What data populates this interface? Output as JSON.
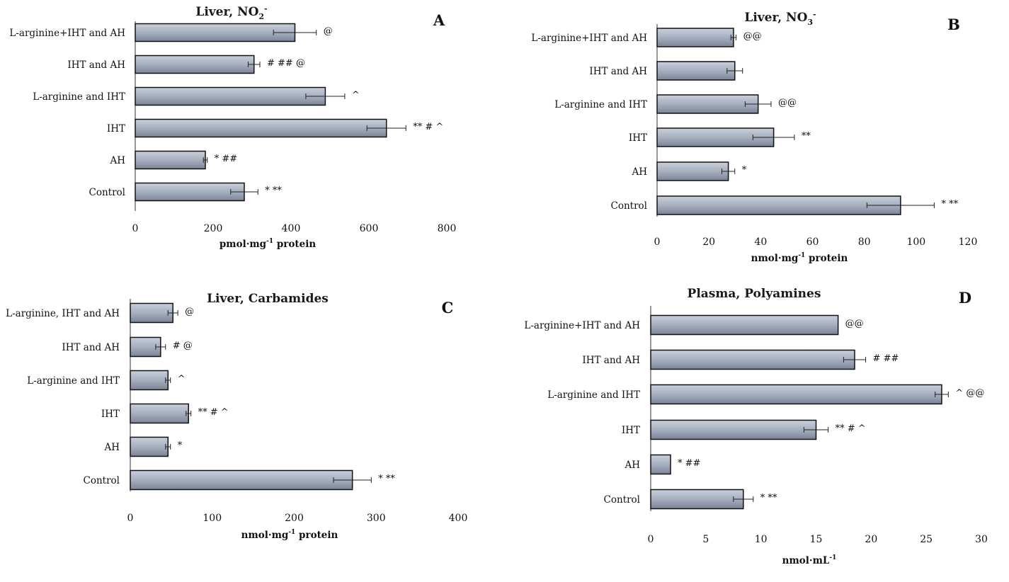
{
  "chart_data": [
    {
      "type": "bar",
      "orientation": "horizontal",
      "panel": "A",
      "title": "Liver,  NO2-",
      "title_main": "Liver,  NO",
      "title_sub": "2",
      "title_sup": "-",
      "xlabel": "pmol·mg-1 protein",
      "xlabel_parts": [
        "pmol·mg",
        "-1",
        " protein"
      ],
      "xlim": [
        0,
        800
      ],
      "ticks": [
        "0",
        "200",
        "400",
        "600",
        "800"
      ],
      "tick_values": [
        0,
        200,
        400,
        600,
        800
      ],
      "categories": [
        "L-arginine+IHT and AH",
        "IHT and AH",
        "L-arginine and IHT",
        "IHT",
        "AH",
        "Control"
      ],
      "values": [
        410,
        305,
        488,
        645,
        180,
        280
      ],
      "errors": [
        55,
        15,
        50,
        50,
        5,
        35
      ],
      "significance": [
        "@",
        "# ## @",
        "^",
        "** # ^",
        "* ##",
        "* **"
      ]
    },
    {
      "type": "bar",
      "orientation": "horizontal",
      "panel": "B",
      "title": "Liver, NO3-",
      "title_main": "Liver, NO",
      "title_sub": "3",
      "title_sup": "-",
      "xlabel": "nmol·mg-1 protein",
      "xlabel_parts": [
        "nmol·mg",
        "-1",
        " protein"
      ],
      "xlim": [
        0,
        120
      ],
      "ticks": [
        "0",
        "20",
        "40",
        "60",
        "80",
        "100",
        "120"
      ],
      "tick_values": [
        0,
        20,
        40,
        60,
        80,
        100,
        120
      ],
      "categories": [
        "L-arginine+IHT and AH",
        "IHT and AH",
        "L-arginine and IHT",
        "IHT",
        "AH",
        "Control"
      ],
      "values": [
        29.5,
        30,
        39,
        45,
        27.5,
        94
      ],
      "errors": [
        1,
        3,
        5,
        8,
        2.5,
        13
      ],
      "significance": [
        "@@",
        "",
        "@@",
        "**",
        "*",
        "* **"
      ]
    },
    {
      "type": "bar",
      "orientation": "horizontal",
      "panel": "C",
      "title": "Liver, Carbamides",
      "xlabel": "nmol·mg-1 protein",
      "xlabel_parts": [
        "nmol·mg",
        "-1",
        " protein"
      ],
      "xlim": [
        0,
        400
      ],
      "ticks": [
        "0",
        "100",
        "200",
        "300",
        "400"
      ],
      "tick_values": [
        0,
        100,
        200,
        300,
        400
      ],
      "categories": [
        "L-arginine, IHT and AH",
        "IHT and AH",
        "L-arginine and IHT",
        "IHT",
        "AH",
        "Control"
      ],
      "values": [
        52,
        37,
        46,
        71,
        46,
        271
      ],
      "errors": [
        6,
        6,
        3,
        3,
        3,
        23
      ],
      "significance": [
        "@",
        "# @",
        "^",
        "** # ^",
        "*",
        "* **"
      ]
    },
    {
      "type": "bar",
      "orientation": "horizontal",
      "panel": "D",
      "title": "Plasma, Polyamines",
      "xlabel": "nmol·mL-1",
      "xlabel_parts": [
        "nmol·mL",
        "-1",
        ""
      ],
      "xlim": [
        0,
        30
      ],
      "ticks": [
        "0",
        "5",
        "10",
        "15",
        "20",
        "25",
        "30"
      ],
      "tick_values": [
        0,
        5,
        10,
        15,
        20,
        25,
        30
      ],
      "categories": [
        "L-arginine+IHT and AH",
        "IHT and AH",
        "L-arginine and IHT",
        "IHT",
        "AH",
        "Control"
      ],
      "values": [
        17,
        18.5,
        26.4,
        15,
        1.8,
        8.4
      ],
      "errors": [
        0,
        1,
        0.6,
        1.1,
        0,
        0.9
      ],
      "significance": [
        "@@",
        "# ##",
        "^ @@",
        "** #  ^",
        "* ##",
        "* **"
      ]
    }
  ]
}
